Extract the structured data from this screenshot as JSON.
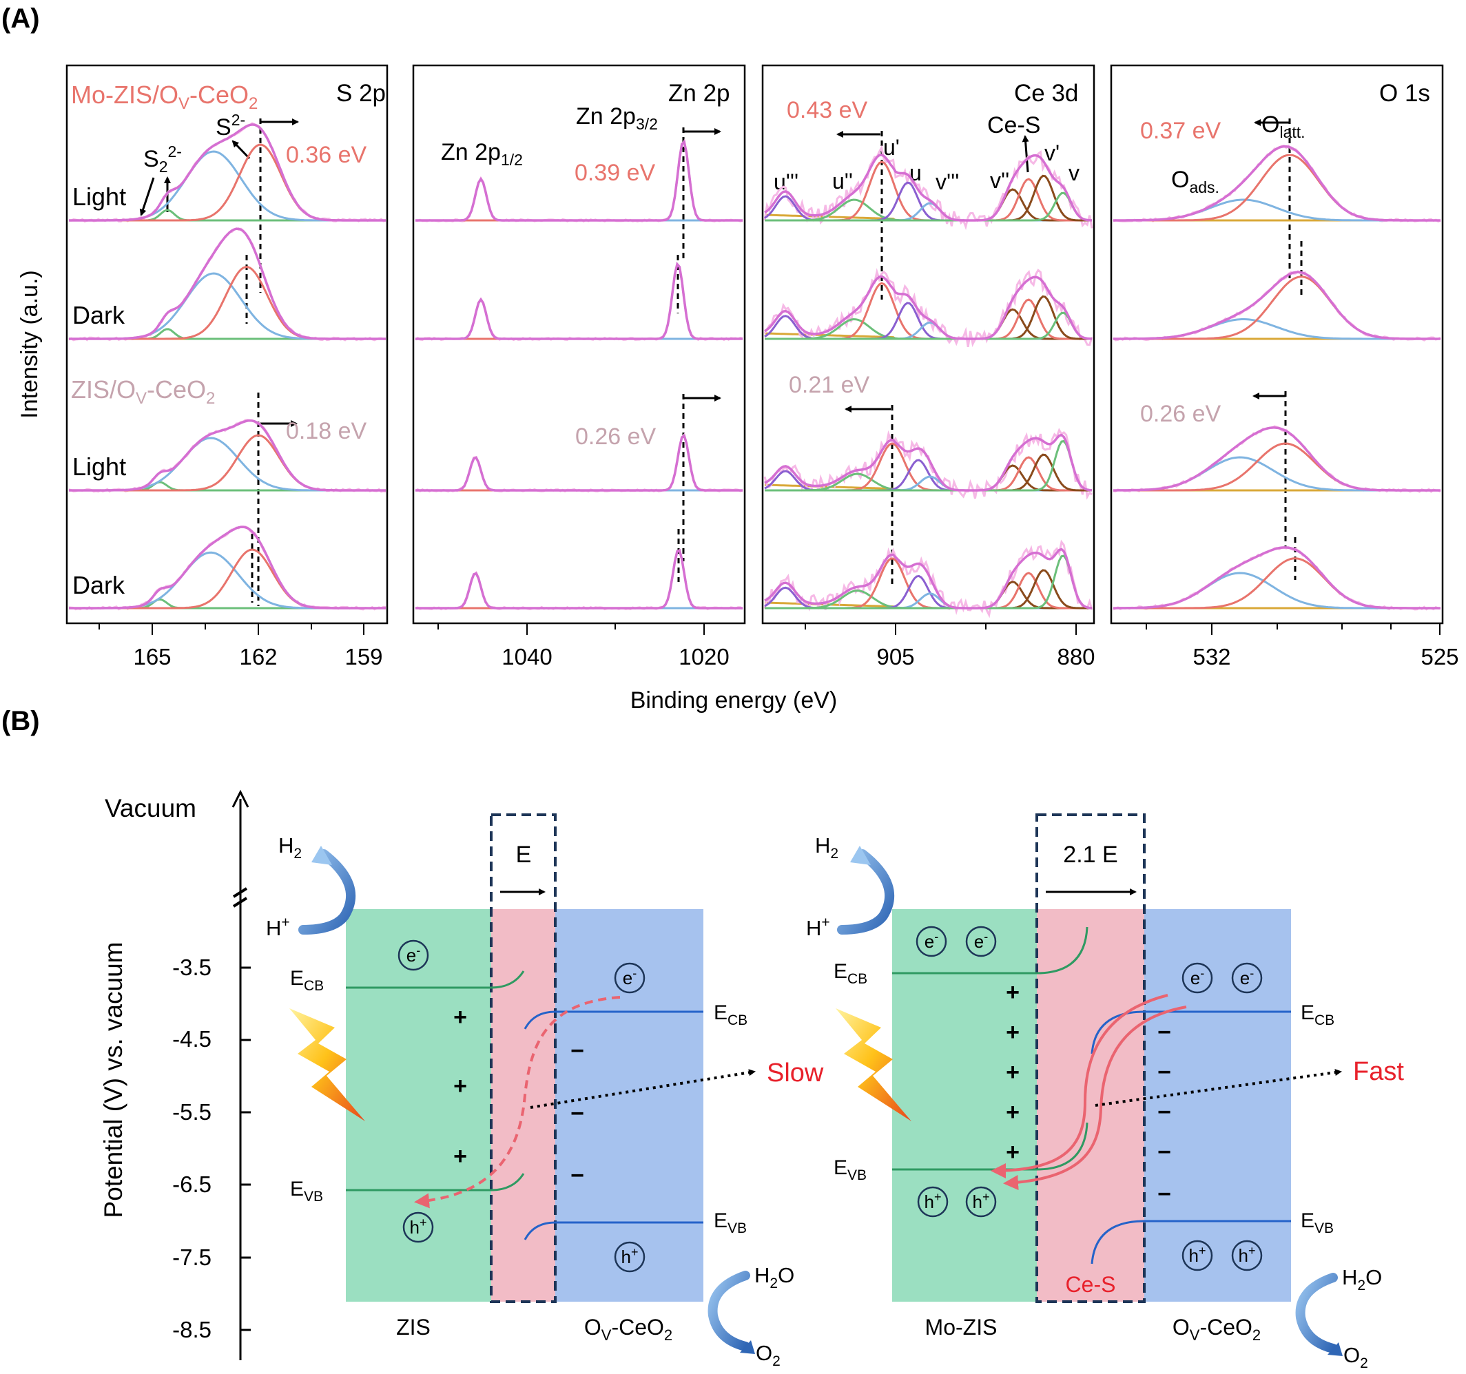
{
  "figure": {
    "panel_a_label": "(A)",
    "panel_b_label": "(B)"
  },
  "colors": {
    "pink_sample": "#e8746c",
    "grey_sample": "#c5a3ad",
    "envelope": "#d56fd2",
    "raw": "#f6b9e6",
    "peak_red": "#e8746c",
    "peak_blue": "#7fb4e1",
    "peak_green": "#6bbf7a",
    "peak_purple": "#8a5fd0",
    "peak_brown": "#8a4b1c",
    "baseline": "#d9a838",
    "zis_band": "#9bdfc1",
    "interface": "#f2bcc6",
    "ceo2_band": "#a6c2ee",
    "cb_line_green": "#2f9a62",
    "cb_line_blue": "#2563c9",
    "fast_slow_red": "#e8212b"
  },
  "panel_a": {
    "y_axis_label": "Intensity (a.u.)",
    "x_axis_label": "Binding energy (eV)",
    "sample_mo": "Mo-ZIS/OV-CeO2",
    "sample_zis": "ZIS/OV-CeO2",
    "row_labels": [
      "Light",
      "Dark",
      "Light",
      "Dark"
    ],
    "subpanels": [
      {
        "name": "S 2p",
        "ticks": [
          "165",
          "162",
          "159"
        ],
        "peak_labels": [
          "S22-",
          "S2-"
        ],
        "shift_mo": "0.36 eV",
        "shift_zis": "0.18 eV"
      },
      {
        "name": "Zn 2p",
        "ticks": [
          "1040",
          "1020"
        ],
        "peak_labels": [
          "Zn 2p1/2",
          "Zn 2p3/2"
        ],
        "shift_mo": "0.39 eV",
        "shift_zis": "0.26 eV"
      },
      {
        "name": "Ce 3d",
        "ticks": [
          "905",
          "880"
        ],
        "peak_labels": [
          "u'''",
          "u''",
          "u'",
          "u",
          "v'''",
          "v''",
          "Ce-S",
          "v'",
          "v"
        ],
        "shift_mo": "0.43 eV",
        "shift_zis": "0.21 eV"
      },
      {
        "name": "O 1s",
        "ticks": [
          "532",
          "525"
        ],
        "peak_labels": [
          "Olatt.",
          "Oads."
        ],
        "shift_mo": "0.37 eV",
        "shift_zis": "0.26 eV"
      }
    ]
  },
  "panel_b": {
    "vacuum": "Vacuum",
    "y_axis_label": "Potential (V) vs. vacuum",
    "y_ticks": [
      "-3.5",
      "-4.5",
      "-5.5",
      "-6.5",
      "-7.5",
      "-8.5"
    ],
    "left": {
      "field": "E",
      "material_left": "ZIS",
      "material_right": "OV-CeO2",
      "rate": "Slow",
      "ecb": "ECB",
      "evb": "EVB",
      "electron": "e-",
      "hole": "h+",
      "h2": "H2",
      "hplus": "H+",
      "h2o": "H2O",
      "o2": "O2",
      "plus": "+",
      "minus": "-"
    },
    "right": {
      "field": "2.1 E",
      "material_left": "Mo-ZIS",
      "material_right": "OV-CeO2",
      "rate": "Fast",
      "bond": "Ce-S"
    }
  }
}
